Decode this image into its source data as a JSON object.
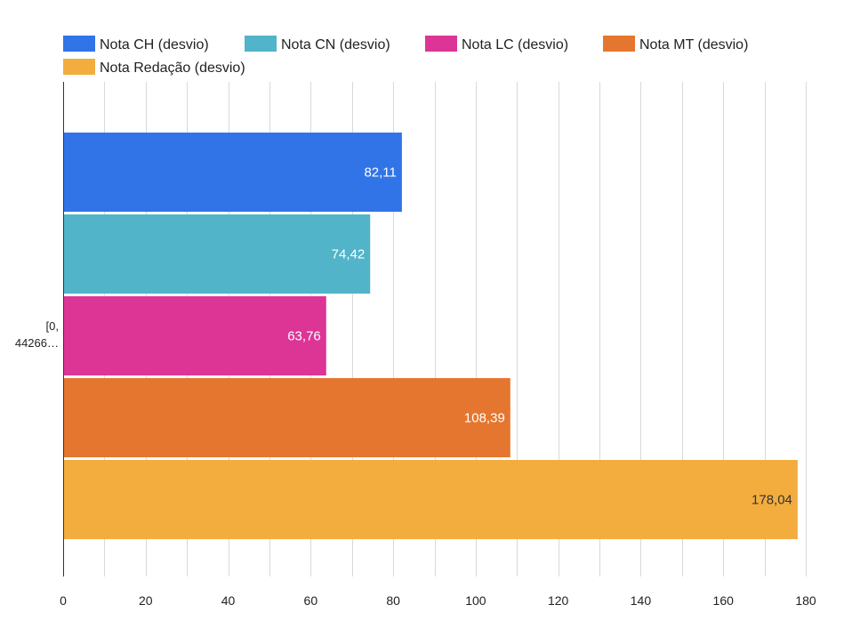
{
  "chart_data": {
    "type": "bar",
    "orientation": "horizontal",
    "categories": [
      "[0, 44266…"
    ],
    "category_label_lines": [
      "[0,",
      "44266…"
    ],
    "series": [
      {
        "name": "Nota CH (desvio)",
        "values": [
          82.11
        ],
        "color": "#3174e8",
        "value_label": "82,11",
        "label_color": "#ffffff"
      },
      {
        "name": "Nota CN (desvio)",
        "values": [
          74.42
        ],
        "color": "#52b4c9",
        "value_label": "74,42",
        "label_color": "#ffffff"
      },
      {
        "name": "Nota LC (desvio)",
        "values": [
          63.76
        ],
        "color": "#dc3596",
        "value_label": "63,76",
        "label_color": "#ffffff"
      },
      {
        "name": "Nota MT (desvio)",
        "values": [
          108.39
        ],
        "color": "#e5762f",
        "value_label": "108,39",
        "label_color": "#ffffff"
      },
      {
        "name": "Nota Redação (desvio)",
        "values": [
          178.04
        ],
        "color": "#f3ad3e",
        "value_label": "178,04",
        "label_color": "#333333"
      }
    ],
    "xlim": [
      0,
      180
    ],
    "x_ticks": [
      0,
      20,
      40,
      60,
      80,
      100,
      120,
      140,
      160,
      180
    ],
    "x_tick_labels": [
      "0",
      "20",
      "40",
      "60",
      "80",
      "100",
      "120",
      "140",
      "160",
      "180"
    ],
    "grid": "vertical",
    "grid_minor": true,
    "legend_position": "top",
    "title": "",
    "xlabel": "",
    "ylabel": ""
  }
}
